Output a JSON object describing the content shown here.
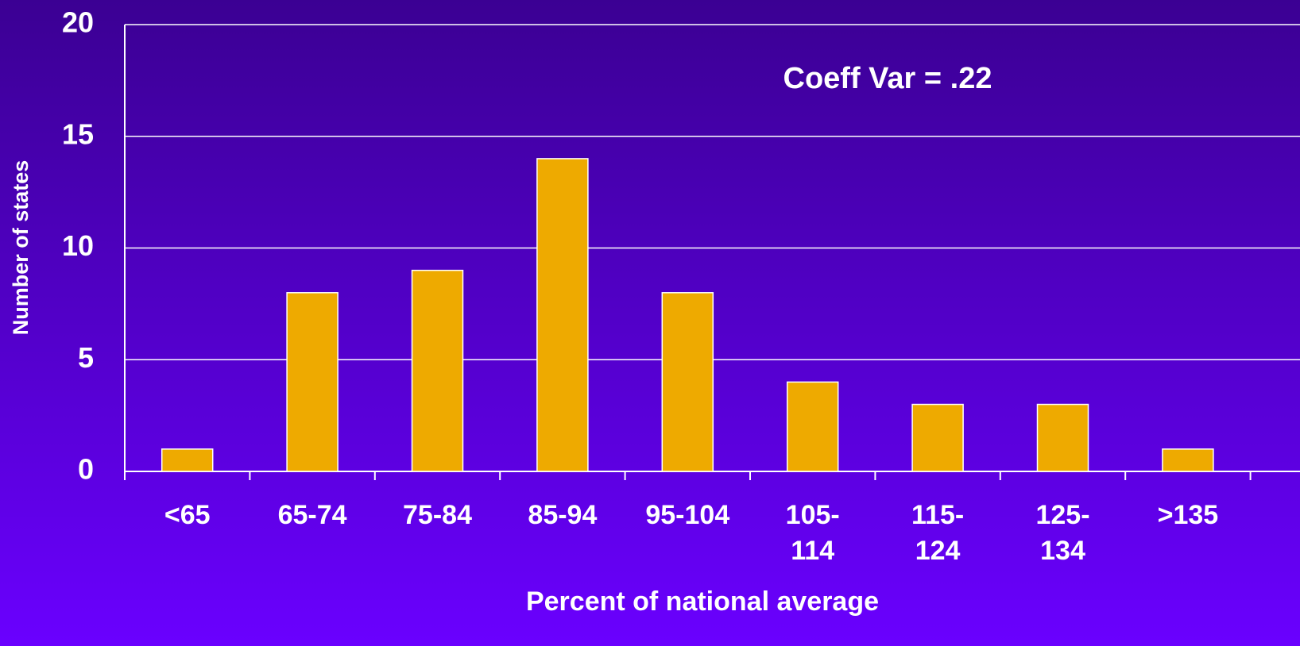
{
  "chart_data": {
    "type": "bar",
    "xlabel": "Percent of national average",
    "ylabel": "Number of states",
    "annotation": "Coeff Var = .22",
    "categories": [
      "<65",
      "65-74",
      "75-84",
      "85-94",
      "95-104",
      "105-\n114",
      "115-\n124",
      "125-\n134",
      ">135"
    ],
    "values": [
      1,
      8,
      9,
      14,
      8,
      4,
      3,
      3,
      1
    ],
    "color": "#eeaa00",
    "ylim": [
      0,
      20
    ],
    "yticks": [
      0,
      5,
      10,
      15,
      20
    ],
    "grid": true
  }
}
